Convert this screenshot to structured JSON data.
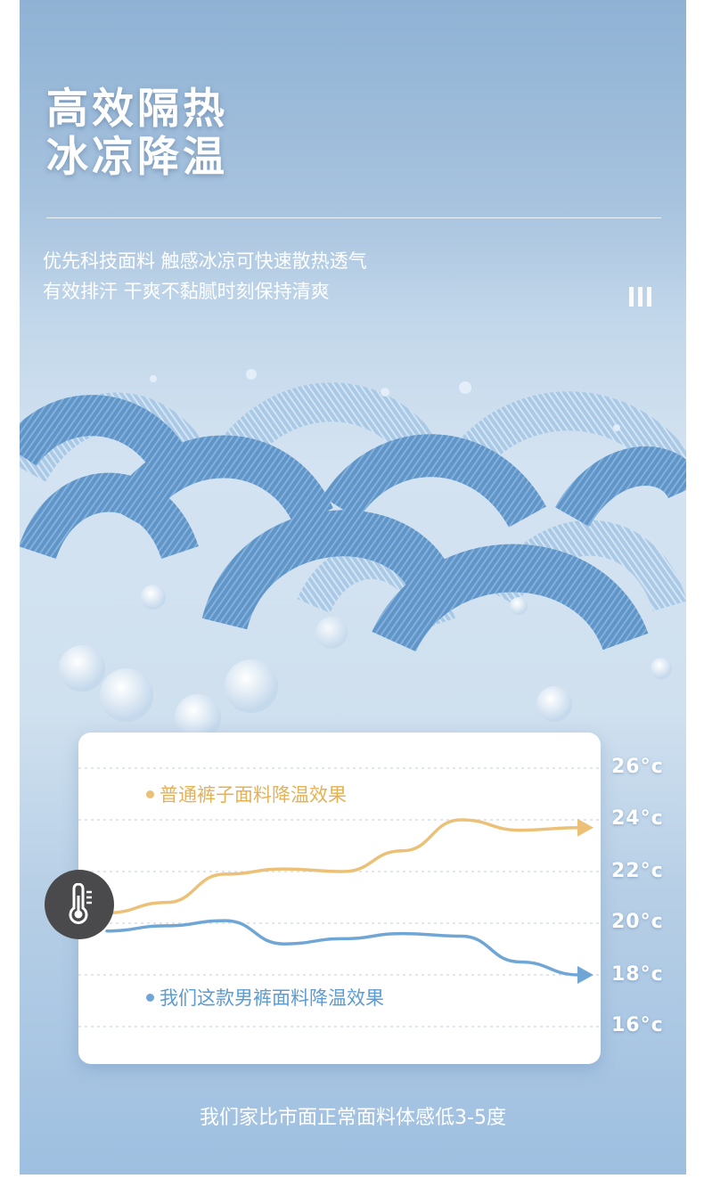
{
  "headline": {
    "line1": "高效隔热",
    "line2": "冰凉降温"
  },
  "subtext": {
    "line1": "优先科技面料 触感冰凉可快速散热透气",
    "line2": "有效排汗 干爽不黏腻时刻保持清爽"
  },
  "icons": {
    "bars": "bars-icon",
    "thermometer": "thermometer-icon"
  },
  "colors": {
    "panel": "#9ebfe0",
    "ordinary_line": "#ecc177",
    "our_line": "#6fa6d6"
  },
  "chart_data": {
    "type": "line",
    "title": "",
    "xlabel": "",
    "ylabel": "",
    "ylim": [
      16,
      26
    ],
    "y_ticks": [
      "26°c",
      "24°c",
      "22°c",
      "20°c",
      "18°c",
      "16°c"
    ],
    "grid": true,
    "x": [
      0,
      1,
      2,
      3,
      4,
      5,
      6,
      7,
      8
    ],
    "series": [
      {
        "name": "普通裤子面料降温效果",
        "values": [
          20.4,
          20.8,
          21.9,
          22.1,
          22.0,
          22.8,
          24.0,
          23.6,
          23.7
        ]
      },
      {
        "name": "我们这款男裤面料降温效果",
        "values": [
          19.7,
          19.9,
          20.1,
          19.2,
          19.4,
          19.6,
          19.5,
          18.5,
          18.0
        ]
      }
    ]
  },
  "footer": {
    "text": "我们家比市面正常面料体感低3-5度"
  }
}
